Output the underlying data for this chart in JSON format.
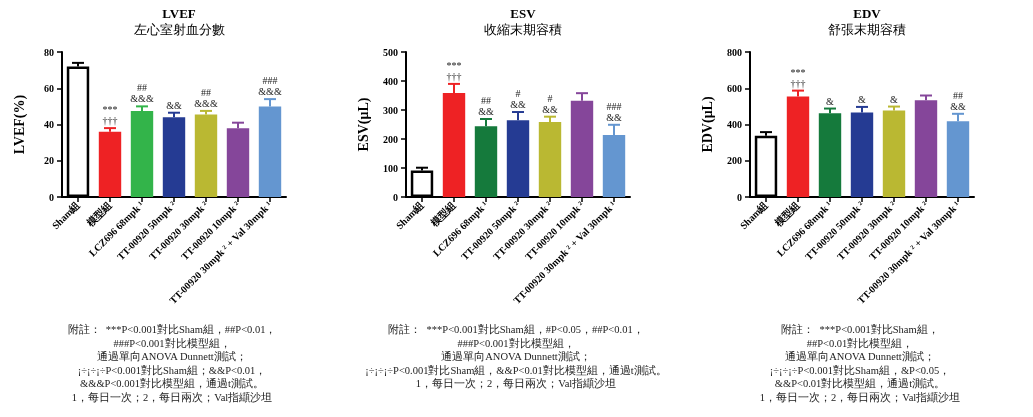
{
  "chart_data": [
    {
      "type": "bar",
      "title": "LVEF",
      "subtitle": "左心室射血分數",
      "ylabel": "LVEF(%)",
      "categories": [
        "Sham組",
        "模型組",
        "LCZ696 68mpk ¹",
        "TT-00920 50mpk ²",
        "TT-00920 30mpk ²",
        "TT-00920 10mpk ²",
        "TT-00920 30mpk ² + Val 30mpk ¹"
      ],
      "values": [
        72,
        36,
        47.5,
        44,
        45.5,
        38,
        50
      ],
      "errors": [
        2,
        2,
        2.5,
        2.5,
        2,
        3,
        4
      ],
      "colors": [
        "#ffffff",
        "#ee2224",
        "#33b44a",
        "#253b93",
        "#bab832",
        "#85469a",
        "#6496d0"
      ],
      "ylim": [
        0,
        80
      ],
      "yticks": [
        0,
        20,
        40,
        60,
        80
      ],
      "value_labels": [
        null,
        "***\n†††",
        "##\n&&&",
        "&&",
        "##\n&&&",
        null,
        "###\n&&&"
      ],
      "annotations": [
        "附註：  ***P<0.001對比Sham組，##P<0.01，",
        "###P<0.001對比模型組，",
        "通過單向ANOVA Dunnett測試；",
        "¡÷¡÷¡÷P<0.001對比Sham組；&&P<0.01，",
        "&&&P<0.001對比模型組，通過t測試。",
        "1，每日一次；2，每日兩次；Val指纈沙坦"
      ]
    },
    {
      "type": "bar",
      "title": "ESV",
      "subtitle": "收縮末期容積",
      "ylabel": "ESV(μL)",
      "categories": [
        "Sham組",
        "模型組",
        "LCZ696 68mpk ¹",
        "TT-00920 50mpk ²",
        "TT-00920 30mpk ²",
        "TT-00920 10mpk ²",
        "TT-00920 30mpk ² + Val 30mpk ¹"
      ],
      "values": [
        91,
        359,
        244,
        265,
        259,
        332,
        214
      ],
      "errors": [
        10,
        31,
        25,
        28,
        18,
        26,
        35
      ],
      "colors": [
        "#ffffff",
        "#ee2224",
        "#157a3c",
        "#253b93",
        "#bab832",
        "#85469a",
        "#6496d0"
      ],
      "ylim": [
        0,
        500
      ],
      "yticks": [
        0,
        100,
        200,
        300,
        400,
        500
      ],
      "value_labels": [
        null,
        "***\n†††",
        "##\n&&",
        "#\n&&",
        "#\n&&",
        null,
        "###\n&&"
      ],
      "annotations": [
        "附註：  ***P<0.001對比Sham組，#P<0.05，##P<0.01，",
        "###P<0.001對比模型組，",
        "通過單向ANOVA Dunnett測試；",
        "¡÷¡÷¡÷P<0.001對比Sham組，&&P<0.01對比模型組，通過t測試。",
        "1，每日一次；2，每日兩次；Val指纈沙坦"
      ]
    },
    {
      "type": "bar",
      "title": "EDV",
      "subtitle": "舒張末期容積",
      "ylabel": "EDV(μL)",
      "categories": [
        "Sham組",
        "模型組",
        "LCZ696 68mpk ¹",
        "TT-00920 50mpk ²",
        "TT-00920 30mpk ²",
        "TT-00920 10mpk ²",
        "TT-00920 30mpk ² + Val 30mpk ¹"
      ],
      "values": [
        338,
        554,
        462,
        466,
        477,
        534,
        418
      ],
      "errors": [
        20,
        33,
        26,
        31,
        22,
        26,
        41
      ],
      "colors": [
        "#ffffff",
        "#ee2224",
        "#157a3c",
        "#253b93",
        "#bab832",
        "#85469a",
        "#6496d0"
      ],
      "ylim": [
        0,
        800
      ],
      "yticks": [
        0,
        200,
        400,
        600,
        800
      ],
      "value_labels": [
        null,
        "***\n†††",
        "&",
        "&",
        "&",
        null,
        "##\n&&"
      ],
      "annotations": [
        "附註：  ***P<0.001對比Sham組，",
        "##P<0.01對比模型組，",
        "通過單向ANOVA Dunnett測試；",
        "¡÷¡÷¡÷P<0.001對比Sham組，&P<0.05，",
        "&&P<0.01對比模型組，通過t測試。",
        "1，每日一次；2，每日兩次；Val指纈沙坦"
      ]
    }
  ]
}
